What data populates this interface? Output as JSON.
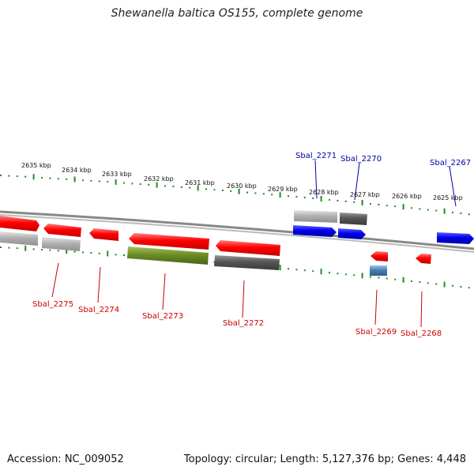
{
  "title": "Shewanella baltica OS155, complete genome",
  "footer": {
    "accession": "Accession: NC_009052",
    "summary": "Topology: circular; Length: 5,127,376 bp; Genes: 4,448"
  },
  "colors": {
    "tick_green": "#228B22",
    "backbone": "#888888",
    "gene_red": "#ff0000",
    "gene_blue": "#0000ee",
    "gene_olive": "#6b8e23",
    "gene_gray_light": "#b0b0b0",
    "gene_gray_dark": "#555555",
    "gene_steel": "#4682b4",
    "label_red": "#cc0000",
    "label_blue": "#0000aa"
  },
  "scale_labels": [
    "2635 kbp",
    "2634 kbp",
    "2633 kbp",
    "2632 kbp",
    "2631 kbp",
    "2630 kbp",
    "2629 kbp",
    "2628 kbp",
    "2627 kbp",
    "2626 kbp",
    "2625 kbp"
  ],
  "genes": [
    {
      "name": "Sbal_2275",
      "color": "red"
    },
    {
      "name": "Sbal_2274",
      "color": "red"
    },
    {
      "name": "Sbal_2273",
      "color": "red"
    },
    {
      "name": "Sbal_2272",
      "color": "red"
    },
    {
      "name": "Sbal_2271",
      "color": "blue"
    },
    {
      "name": "Sbal_2270",
      "color": "blue"
    },
    {
      "name": "Sbal_2269",
      "color": "red"
    },
    {
      "name": "Sbal_2268",
      "color": "red"
    },
    {
      "name": "Sbal_2267",
      "color": "blue"
    }
  ]
}
